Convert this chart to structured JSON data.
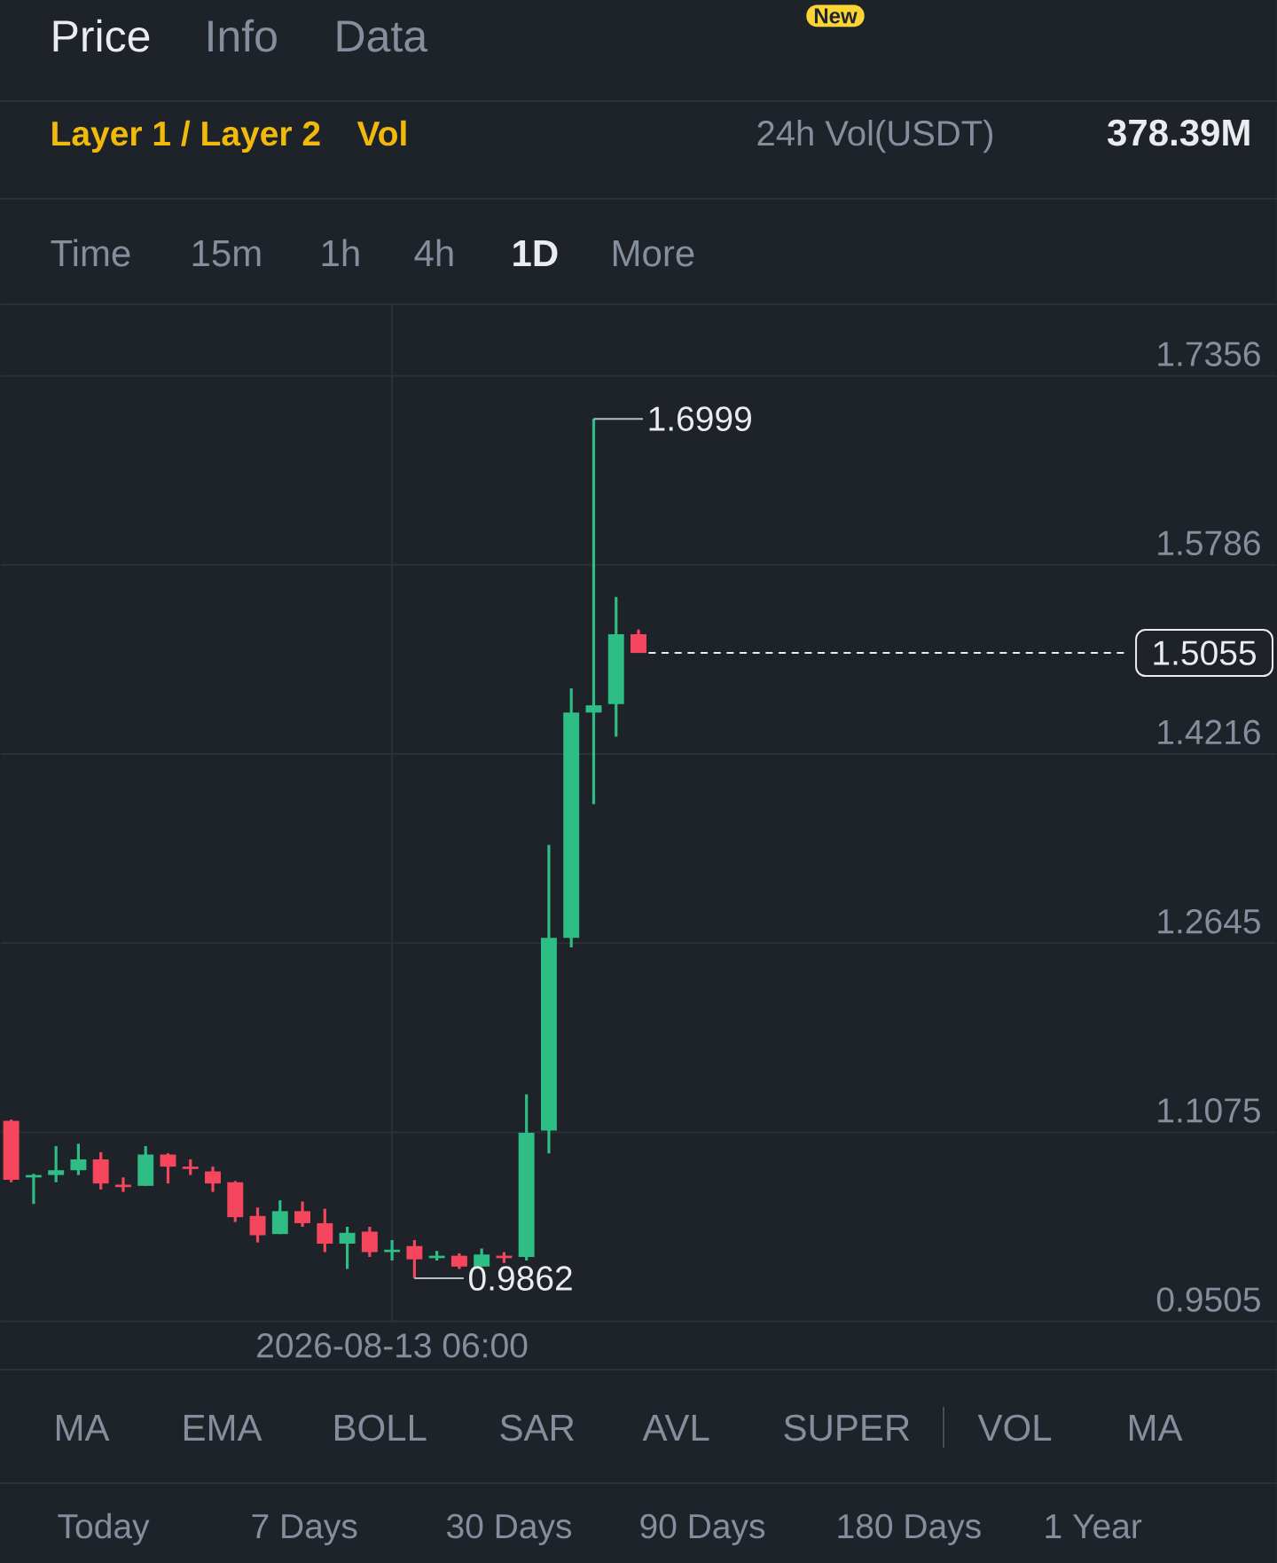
{
  "chart_data": {
    "type": "candlestick",
    "categories": [
      null,
      null,
      null,
      null,
      null,
      null,
      null,
      null,
      null,
      null,
      null,
      null,
      null,
      null,
      null,
      null,
      null,
      "2026-08-13 06:00",
      null,
      null,
      null,
      null,
      null,
      null,
      null,
      null,
      null,
      null,
      null,
      null,
      null,
      null,
      null,
      null,
      null,
      null,
      null,
      null,
      null,
      null,
      null,
      null,
      null,
      null,
      null,
      null,
      null,
      null,
      null,
      null,
      null,
      null,
      null,
      null,
      null,
      null,
      null
    ],
    "ohlc": [
      [
        1.117,
        1.118,
        1.066,
        1.068
      ],
      [
        1.07,
        1.073,
        1.048,
        1.072
      ],
      [
        1.072,
        1.096,
        1.066,
        1.076
      ],
      [
        1.076,
        1.098,
        1.072,
        1.085
      ],
      [
        1.085,
        1.091,
        1.06,
        1.065
      ],
      [
        1.064,
        1.07,
        1.058,
        1.062
      ],
      [
        1.063,
        1.096,
        1.063,
        1.089
      ],
      [
        1.089,
        1.09,
        1.065,
        1.079
      ],
      [
        1.079,
        1.085,
        1.072,
        1.077
      ],
      [
        1.075,
        1.079,
        1.058,
        1.065
      ],
      [
        1.066,
        1.067,
        1.033,
        1.037
      ],
      [
        1.038,
        1.045,
        1.016,
        1.022
      ],
      [
        1.023,
        1.051,
        1.023,
        1.042
      ],
      [
        1.042,
        1.05,
        1.029,
        1.032
      ],
      [
        1.032,
        1.044,
        1.008,
        1.015
      ],
      [
        1.015,
        1.029,
        0.994,
        1.024
      ],
      [
        1.025,
        1.029,
        1.004,
        1.008
      ],
      [
        1.008,
        1.018,
        1.001,
        1.01
      ],
      [
        1.013,
        1.018,
        0.9862,
        1.002
      ],
      [
        1.003,
        1.009,
        1.001,
        1.005
      ],
      [
        1.005,
        1.007,
        0.994,
        0.996
      ],
      [
        0.996,
        1.011,
        0.996,
        1.006
      ],
      [
        1.005,
        1.008,
        0.999,
        1.003
      ],
      [
        1.004,
        1.139,
        1.001,
        1.107
      ],
      [
        1.109,
        1.346,
        1.09,
        1.269
      ],
      [
        1.269,
        1.476,
        1.261,
        1.456
      ],
      [
        1.456,
        1.6999,
        1.38,
        1.462
      ],
      [
        1.463,
        1.552,
        1.436,
        1.521
      ],
      [
        1.521,
        1.525,
        1.5055,
        1.5055
      ],
      null,
      null,
      null,
      null,
      null,
      null,
      null,
      null,
      null,
      null,
      null,
      null,
      null,
      null,
      null,
      null,
      null,
      null,
      null,
      null,
      null,
      null,
      null,
      null,
      null,
      null,
      null,
      null
    ],
    "colors": [
      "#f6465d",
      "#2ebd85",
      "#2ebd85",
      "#2ebd85",
      "#f6465d",
      "#f6465d",
      "#2ebd85",
      "#f6465d",
      "#f6465d",
      "#f6465d",
      "#f6465d",
      "#f6465d",
      "#2ebd85",
      "#f6465d",
      "#f6465d",
      "#2ebd85",
      "#f6465d",
      "#2ebd85",
      "#f6465d",
      "#2ebd85",
      "#f6465d",
      "#2ebd85",
      "#f6465d",
      "#2ebd85",
      "#2ebd85",
      "#2ebd85",
      "#2ebd85",
      "#2ebd85",
      "#f6465d",
      null,
      null,
      null,
      null,
      null,
      null,
      null,
      null,
      null,
      null,
      null,
      null,
      null,
      null,
      null,
      null,
      null,
      null,
      null,
      null,
      null,
      null,
      null,
      null,
      null,
      null,
      null,
      null
    ],
    "ylim": [
      0.9505,
      1.795
    ],
    "yticks": [
      0.9505,
      1.1075,
      1.2645,
      1.4216,
      1.5786,
      1.7356
    ],
    "grid": true,
    "ref_lines": [
      {
        "axis": "y",
        "value": 1.5055,
        "label": "1.5055",
        "color": "#eaecef",
        "line_style": "dashed"
      }
    ],
    "annotations": [
      "Price",
      "Info",
      "Data",
      "New",
      "Layer 1 / Layer 2",
      "Vol",
      "24h Vol(USDT)",
      "378.39M",
      "Time",
      "15m",
      "1h",
      "4h",
      "1D",
      "More",
      "1.6999",
      "0.9862",
      "MA",
      "EMA",
      "BOLL",
      "SAR",
      "AVL",
      "SUPER",
      "VOL",
      "MA",
      "Today",
      "7 Days",
      "30 Days",
      "90 Days",
      "180 Days",
      "1 Year"
    ]
  }
}
